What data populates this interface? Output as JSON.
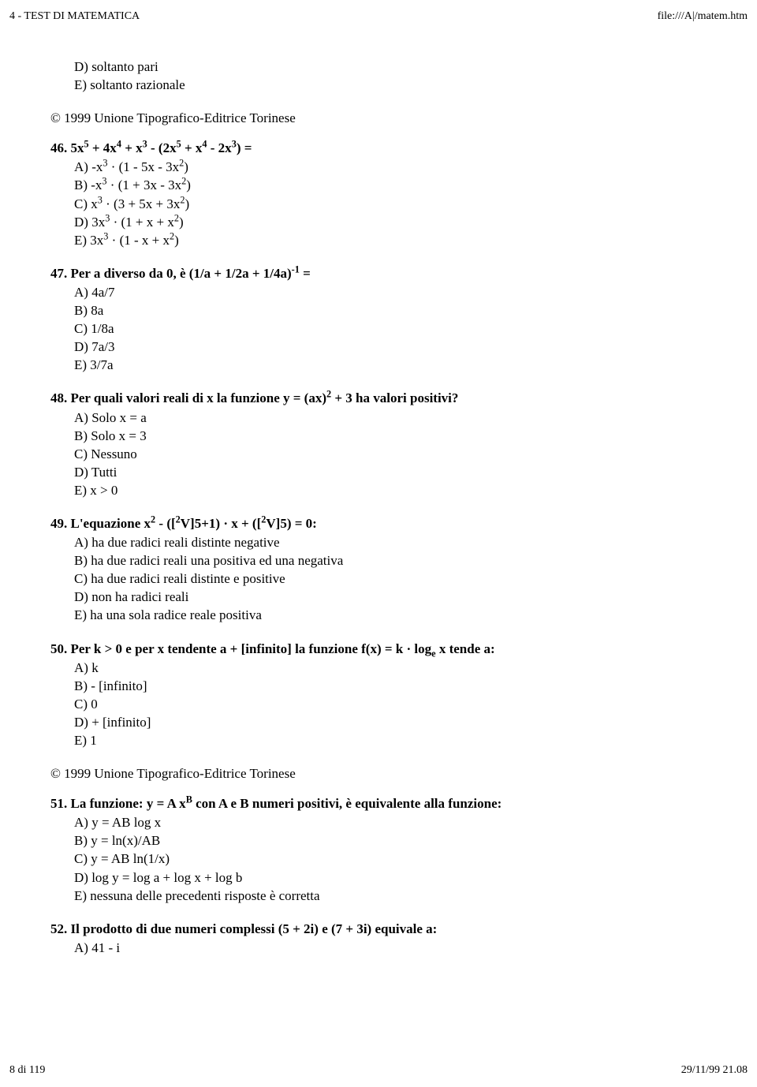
{
  "header": {
    "left": "4 - TEST DI MATEMATICA",
    "right": "file:///A|/matem.htm"
  },
  "footer": {
    "left": "8 di 119",
    "right": "29/11/99 21.08"
  },
  "copyright1": "© 1999 Unione Tipografico-Editrice Torinese",
  "copyright2": "© 1999 Unione Tipografico-Editrice Torinese",
  "intro_answers": {
    "d": "D) soltanto pari",
    "e": "E) soltanto razionale"
  },
  "q46": {
    "num": "46. ",
    "stem_plain": "5x",
    "answers": {
      "a_pre": "A) -x",
      "a_mid": " · (1 - 5x - 3x",
      "a_end": ")",
      "b_pre": "B) -x",
      "b_mid": " · (1 + 3x - 3x",
      "b_end": ")",
      "c_pre": "C) x",
      "c_mid": " · (3 + 5x + 3x",
      "c_end": ")",
      "d_pre": "D) 3x",
      "d_mid": " · (1 + x + x",
      "d_end": ")",
      "e_pre": "E) 3x",
      "e_mid": " · (1 - x + x",
      "e_end": ")"
    }
  },
  "q47": {
    "stem_pre": "47. Per a diverso da 0, è (1/a + 1/2a + 1/4a)",
    "stem_end": " =",
    "answers": {
      "a": "A) 4a/7",
      "b": "B) 8a",
      "c": "C) 1/8a",
      "d": "D) 7a/3",
      "e": "E) 3/7a"
    }
  },
  "q48": {
    "stem_pre": "48. Per quali valori reali di x la funzione y = (ax)",
    "stem_end": " + 3 ha valori positivi?",
    "answers": {
      "a": "A) Solo x = a",
      "b": "B) Solo x = 3",
      "c": "C) Nessuno",
      "d": "D) Tutti",
      "e": "E) x > 0"
    }
  },
  "q49": {
    "stem_pre": "49. L'equazione x",
    "stem_mid1": " - ([",
    "stem_mid2": "V]5+1) · x + ([",
    "stem_end": "V]5) = 0:",
    "answers": {
      "a": "A) ha due radici reali distinte negative",
      "b": "B) ha due radici reali una positiva ed una negativa",
      "c": "C) ha due radici reali distinte e positive",
      "d": "D) non ha radici reali",
      "e": "E) ha una sola radice reale positiva"
    }
  },
  "q50": {
    "stem_pre": "50. Per k > 0 e per x tendente a + [infinito] la funzione f(x) = k · log",
    "stem_end": " x tende a:",
    "answers": {
      "a": "A) k",
      "b": "B) - [infinito]",
      "c": "C) 0",
      "d": "D) + [infinito]",
      "e": "E) 1"
    }
  },
  "q51": {
    "stem_pre": "51. La funzione: y = A x",
    "stem_end": " con A e B numeri positivi, è equivalente alla funzione:",
    "answers": {
      "a": "A) y = AB log x",
      "b": "B) y = ln(x)/AB",
      "c": "C) y = AB ln(1/x)",
      "d": "D) log y = log a + log x + log b",
      "e": "E) nessuna delle precedenti risposte è corretta"
    }
  },
  "q52": {
    "stem": "52. Il prodotto di due numeri complessi (5 + 2i) e (7 + 3i) equivale a:",
    "answers": {
      "a": "A) 41 - i"
    }
  },
  "sup": {
    "s2": "2",
    "s3": "3",
    "s4": "4",
    "s5": "5",
    "neg1": "-1",
    "B": "B"
  },
  "sub": {
    "e": "e"
  },
  "q46_parts": {
    "p1": " + 4x",
    "p2": " + x",
    "p3": " - (2x",
    "p4": " + x",
    "p5": " - 2x",
    "p6": ") ="
  }
}
